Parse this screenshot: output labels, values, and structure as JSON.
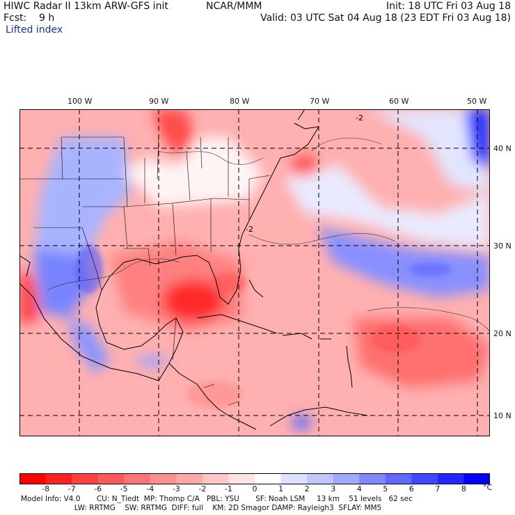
{
  "header": {
    "title": "HIWC Radar II 13km ARW-GFS init",
    "center": "NCAR/MMM",
    "init": "Init: 18 UTC Fri 03 Aug 18",
    "fcst": "Fcst:    9 h",
    "valid": "Valid: 03 UTC Sat 04 Aug 18 (23 EDT Fri 03 Aug 18)",
    "field": "Lifted index"
  },
  "map": {
    "lon_labels": [
      "100 W",
      "90 W",
      "80 W",
      "70 W",
      "60 W",
      "50 W"
    ],
    "lat_labels": [
      "40 N",
      "30 N",
      "20 N",
      "10 N"
    ],
    "contour_label": "-2"
  },
  "colorbar": {
    "unit": "°C",
    "tick_labels": [
      "-8",
      "-7",
      "-6",
      "-5",
      "-4",
      "-3",
      "-2",
      "-1",
      "0",
      "1",
      "2",
      "3",
      "4",
      "5",
      "6",
      "7",
      "8"
    ],
    "colors": [
      "#ff0000",
      "#ff2020",
      "#ff4040",
      "#ff5a5a",
      "#ff7474",
      "#ff8e8e",
      "#ffa8a8",
      "#ffc4c4",
      "#ffe2e2",
      "#ffffff",
      "#dde0ff",
      "#c0c6ff",
      "#a0a8ff",
      "#8088ff",
      "#6068ff",
      "#4048ff",
      "#2028ff",
      "#0000ff"
    ]
  },
  "footer": {
    "line1": "Model Info: V4.0       CU: N_Tiedt  MP: Thomp C/A   PBL: YSU       SF: Noah LSM     13 km    51 levels   62 sec",
    "line2": "                       LW: RRTMG    SW: RRTMG  DIFF: full    KM: 2D Smagor DAMP: Rayleigh3  SFLAY: MM5"
  }
}
